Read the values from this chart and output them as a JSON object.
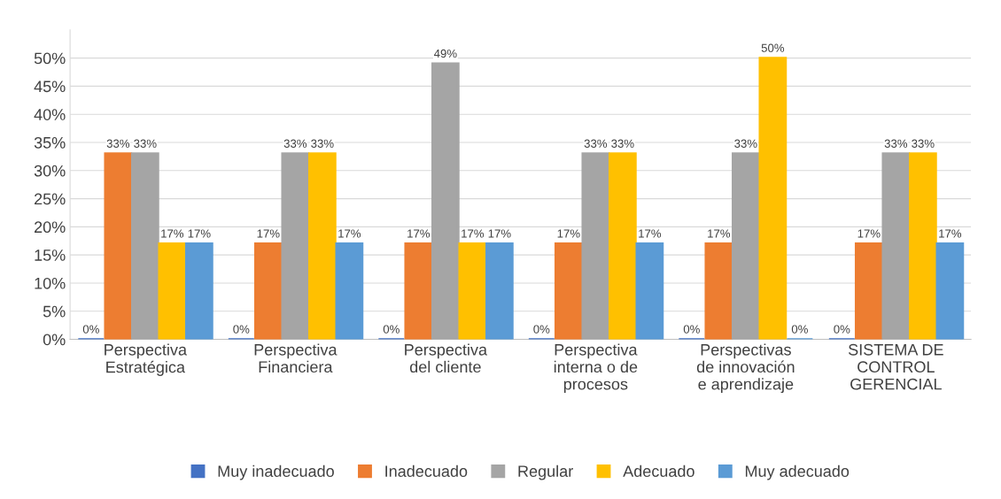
{
  "chart_data": {
    "type": "bar",
    "categories": [
      "Perspectiva\nEstratégica",
      "Perspectiva\nFinanciera",
      "Perspectiva\ndel cliente",
      "Perspectiva\ninterna o de\nprocesos",
      "Perspectivas\nde innovación\ne aprendizaje",
      "SISTEMA DE\nCONTROL\nGERENCIAL"
    ],
    "series": [
      {
        "name": "Muy inadecuado",
        "color": "#4472c4",
        "values": [
          0,
          0,
          0,
          0,
          0,
          0
        ],
        "value_labels": [
          "0%",
          "0%",
          "0%",
          "0%",
          "0%",
          "0%"
        ]
      },
      {
        "name": "Inadecuado",
        "color": "#ed7d31",
        "values": [
          33,
          17,
          17,
          17,
          17,
          17
        ],
        "value_labels": [
          "33%",
          "17%",
          "17%",
          "17%",
          "17%",
          "17%"
        ]
      },
      {
        "name": "Regular",
        "color": "#a5a5a5",
        "values": [
          33,
          33,
          49,
          33,
          33,
          33
        ],
        "value_labels": [
          "33%",
          "33%",
          "49%",
          "33%",
          "33%",
          "33%"
        ]
      },
      {
        "name": "Adecuado",
        "color": "#ffc000",
        "values": [
          17,
          33,
          17,
          33,
          50,
          33
        ],
        "value_labels": [
          "17%",
          "33%",
          "17%",
          "33%",
          "50%",
          "33%"
        ]
      },
      {
        "name": "Muy adecuado",
        "color": "#5b9bd5",
        "values": [
          17,
          17,
          17,
          17,
          0,
          17
        ],
        "value_labels": [
          "17%",
          "17%",
          "17%",
          "17%",
          "0%",
          "17%"
        ]
      }
    ],
    "ylim": [
      0,
      55
    ],
    "yticks": [
      {
        "value": 0,
        "label": "0%"
      },
      {
        "value": 5,
        "label": "5%"
      },
      {
        "value": 10,
        "label": "10%"
      },
      {
        "value": 15,
        "label": "15%"
      },
      {
        "value": 20,
        "label": "20%"
      },
      {
        "value": 25,
        "label": "25%"
      },
      {
        "value": 30,
        "label": "30%"
      },
      {
        "value": 35,
        "label": "35%"
      },
      {
        "value": 40,
        "label": "40%"
      },
      {
        "value": 45,
        "label": "45%"
      },
      {
        "value": 50,
        "label": "50%"
      }
    ],
    "grid": "y",
    "legend": "bottom"
  }
}
